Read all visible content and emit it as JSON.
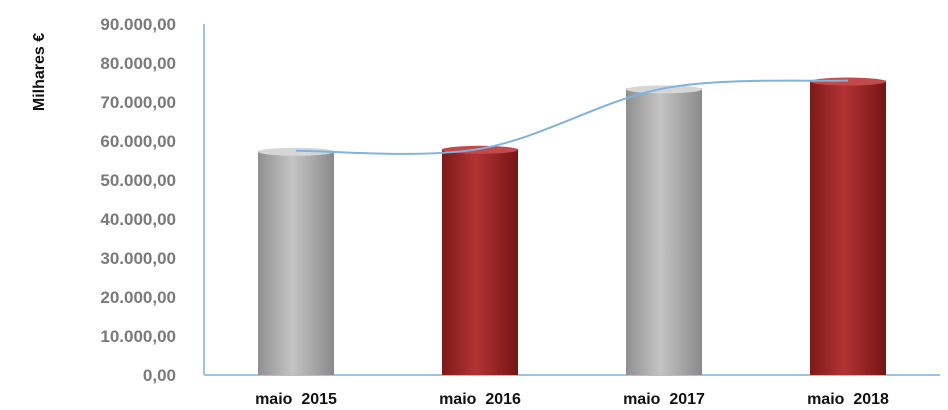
{
  "chart_data": {
    "type": "bar",
    "title": "",
    "xlabel": "",
    "ylabel": "Milhares €",
    "categories": [
      "maio  2015",
      "maio  2016",
      "maio  2017",
      "maio  2018"
    ],
    "series": [
      {
        "values": [
          57500,
          58000,
          73500,
          75500
        ]
      }
    ],
    "bar_colors": [
      "#a9a9a9",
      "#9b2424",
      "#a9a9a9",
      "#9b2424"
    ],
    "trend_line": {
      "type": "smooth",
      "color": "#7fb3e0"
    },
    "ylim": [
      0,
      90000
    ],
    "y_ticks": [
      0,
      10000,
      20000,
      30000,
      40000,
      50000,
      60000,
      70000,
      80000,
      90000
    ],
    "y_tick_labels": [
      "0,00",
      "10.000,00",
      "20.000,00",
      "30.000,00",
      "40.000,00",
      "50.000,00",
      "60.000,00",
      "70.000,00",
      "80.000,00",
      "90.000,00"
    ],
    "axis_color": "#9ec3e6",
    "grid": false,
    "legend": "none"
  }
}
